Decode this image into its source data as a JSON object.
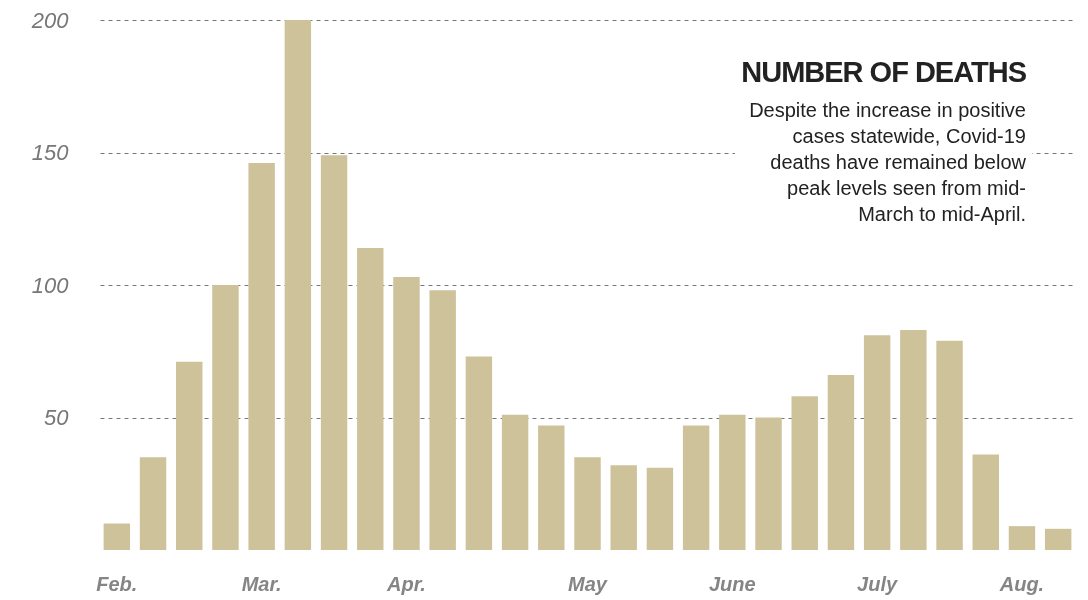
{
  "chart_data": {
    "type": "bar",
    "title": "NUMBER OF DEATHS",
    "annotations": [
      "Despite the increase in positive\ncases statewide, Covid-19\ndeaths have remained below\npeak levels  seen from mid-\nMarch to mid-April."
    ],
    "categories": [
      "Feb.",
      null,
      null,
      null,
      "Mar.",
      null,
      null,
      null,
      "Apr.",
      null,
      null,
      null,
      null,
      "May",
      null,
      null,
      null,
      "June",
      null,
      null,
      null,
      "July",
      null,
      null,
      null,
      "Aug.",
      null
    ],
    "values": [
      10,
      35,
      71,
      100,
      146,
      200,
      149,
      114,
      103,
      98,
      73,
      51,
      47,
      35,
      32,
      31,
      47,
      51,
      50,
      58,
      66,
      81,
      83,
      79,
      36,
      9,
      8
    ],
    "color": "#cdc29a",
    "ylim": [
      0,
      200
    ],
    "yticks": [
      50,
      100,
      150,
      200
    ],
    "grid": "y"
  }
}
